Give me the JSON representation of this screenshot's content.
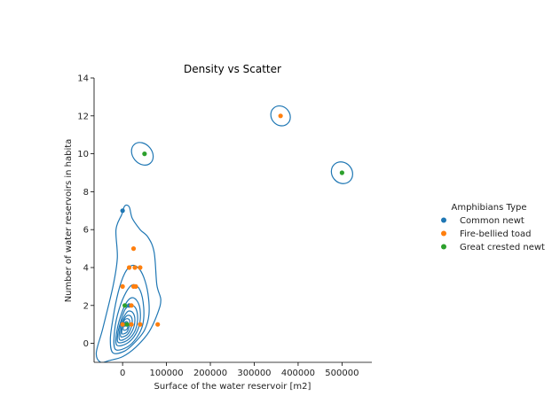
{
  "chart_data": {
    "type": "scatter",
    "title": "Density vs Scatter",
    "xlabel": "Surface of the water reservoir [m2]",
    "ylabel": "Number of water reservoirs in habita",
    "xlim": [
      -65000,
      568000
    ],
    "ylim": [
      -1,
      14
    ],
    "xticks": [
      0,
      100000,
      200000,
      300000,
      400000,
      500000
    ],
    "xtick_labels": [
      "0",
      "100000",
      "200000",
      "300000",
      "400000",
      "500000"
    ],
    "yticks": [
      0,
      2,
      4,
      6,
      8,
      10,
      12,
      14
    ],
    "ytick_labels": [
      "0",
      "2",
      "4",
      "6",
      "8",
      "10",
      "12",
      "14"
    ],
    "grid": false,
    "legend": {
      "title": "Amphibians Type",
      "placement": "right outside"
    },
    "series": [
      {
        "name": "Common newt",
        "color": "#1f77b4",
        "points": [
          [
            0,
            7
          ],
          [
            15000,
            2
          ],
          [
            5000,
            1
          ],
          [
            2000,
            1
          ]
        ]
      },
      {
        "name": "Fire-bellied toad",
        "color": "#ff7f0e",
        "points": [
          [
            360000,
            12
          ],
          [
            25000,
            5
          ],
          [
            15000,
            4
          ],
          [
            28000,
            4
          ],
          [
            40000,
            4
          ],
          [
            0,
            3
          ],
          [
            25000,
            3
          ],
          [
            30000,
            3
          ],
          [
            0,
            1
          ],
          [
            20000,
            1
          ],
          [
            40000,
            1
          ],
          [
            80000,
            1
          ],
          [
            20000,
            2
          ]
        ]
      },
      {
        "name": "Great crested newt",
        "color": "#2ca02c",
        "points": [
          [
            50000,
            10
          ],
          [
            500000,
            9
          ],
          [
            5000,
            2
          ],
          [
            10000,
            1
          ]
        ]
      }
    ],
    "density": {
      "color": "#1f77b4",
      "isolated_contours": [
        {
          "center": [
            45000,
            10
          ],
          "rx": 22000,
          "ry": 0.65,
          "rotate_deg": -40
        },
        {
          "center": [
            360000,
            12
          ],
          "rx": 21000,
          "ry": 0.55,
          "rotate_deg": -40
        },
        {
          "center": [
            500000,
            9
          ],
          "rx": 23000,
          "ry": 0.6,
          "rotate_deg": -40
        }
      ],
      "main_contours": [
        [
          [
            -30000,
            -0.9
          ],
          [
            0,
            -0.7
          ],
          [
            30000,
            -0.2
          ],
          [
            60000,
            0.6
          ],
          [
            80000,
            1.6
          ],
          [
            87000,
            2.3
          ],
          [
            78000,
            3.1
          ],
          [
            72000,
            4.8
          ],
          [
            58000,
            5.6
          ],
          [
            40000,
            6.0
          ],
          [
            22000,
            6.6
          ],
          [
            15000,
            7.2
          ],
          [
            5000,
            7.25
          ],
          [
            -2000,
            6.8
          ],
          [
            -15000,
            6.0
          ],
          [
            -12000,
            4.5
          ],
          [
            -22000,
            3.0
          ],
          [
            -45000,
            0.8
          ],
          [
            -60000,
            -0.5
          ],
          [
            -50000,
            -1.0
          ]
        ],
        [
          [
            -22000,
            -0.5
          ],
          [
            5000,
            -0.4
          ],
          [
            30000,
            0.1
          ],
          [
            50000,
            0.7
          ],
          [
            60000,
            1.5
          ],
          [
            58000,
            2.6
          ],
          [
            48000,
            3.5
          ],
          [
            35000,
            4.0
          ],
          [
            20000,
            4.1
          ],
          [
            5000,
            3.7
          ],
          [
            -10000,
            2.7
          ],
          [
            -22000,
            1.3
          ],
          [
            -28000,
            0.2
          ]
        ],
        [
          [
            -17000,
            -0.3
          ],
          [
            10000,
            -0.2
          ],
          [
            32000,
            0.3
          ],
          [
            46000,
            1.0
          ],
          [
            48000,
            1.9
          ],
          [
            40000,
            2.8
          ],
          [
            24000,
            3.1
          ],
          [
            8000,
            2.7
          ],
          [
            -8000,
            1.8
          ],
          [
            -18000,
            0.7
          ]
        ],
        [
          [
            -13000,
            -0.1
          ],
          [
            10000,
            0.0
          ],
          [
            30000,
            0.5
          ],
          [
            40000,
            1.2
          ],
          [
            38000,
            2.0
          ],
          [
            25000,
            2.4
          ],
          [
            10000,
            2.2
          ],
          [
            -5000,
            1.4
          ],
          [
            -14000,
            0.5
          ]
        ],
        [
          [
            -10000,
            0.05
          ],
          [
            10000,
            0.15
          ],
          [
            27000,
            0.6
          ],
          [
            34000,
            1.2
          ],
          [
            31000,
            1.8
          ],
          [
            20000,
            2.0
          ],
          [
            6000,
            1.8
          ],
          [
            -5000,
            1.1
          ],
          [
            -11000,
            0.5
          ]
        ],
        [
          [
            -7000,
            0.2
          ],
          [
            10000,
            0.3
          ],
          [
            23000,
            0.7
          ],
          [
            28000,
            1.2
          ],
          [
            24000,
            1.6
          ],
          [
            13000,
            1.7
          ],
          [
            3000,
            1.4
          ],
          [
            -5000,
            0.9
          ]
        ],
        [
          [
            -4000,
            0.35
          ],
          [
            10000,
            0.45
          ],
          [
            19000,
            0.8
          ],
          [
            22000,
            1.2
          ],
          [
            18000,
            1.45
          ],
          [
            9000,
            1.45
          ],
          [
            1000,
            1.15
          ],
          [
            -3500,
            0.7
          ]
        ],
        [
          [
            -1000,
            0.5
          ],
          [
            10000,
            0.6
          ],
          [
            15000,
            0.9
          ],
          [
            16000,
            1.2
          ],
          [
            12000,
            1.3
          ],
          [
            5000,
            1.25
          ],
          [
            0,
            1.0
          ],
          [
            -1500,
            0.75
          ]
        ],
        [
          [
            2000,
            0.7
          ],
          [
            10000,
            0.75
          ],
          [
            12000,
            1.0
          ],
          [
            10000,
            1.15
          ],
          [
            5000,
            1.1
          ],
          [
            2000,
            0.9
          ]
        ]
      ]
    }
  }
}
